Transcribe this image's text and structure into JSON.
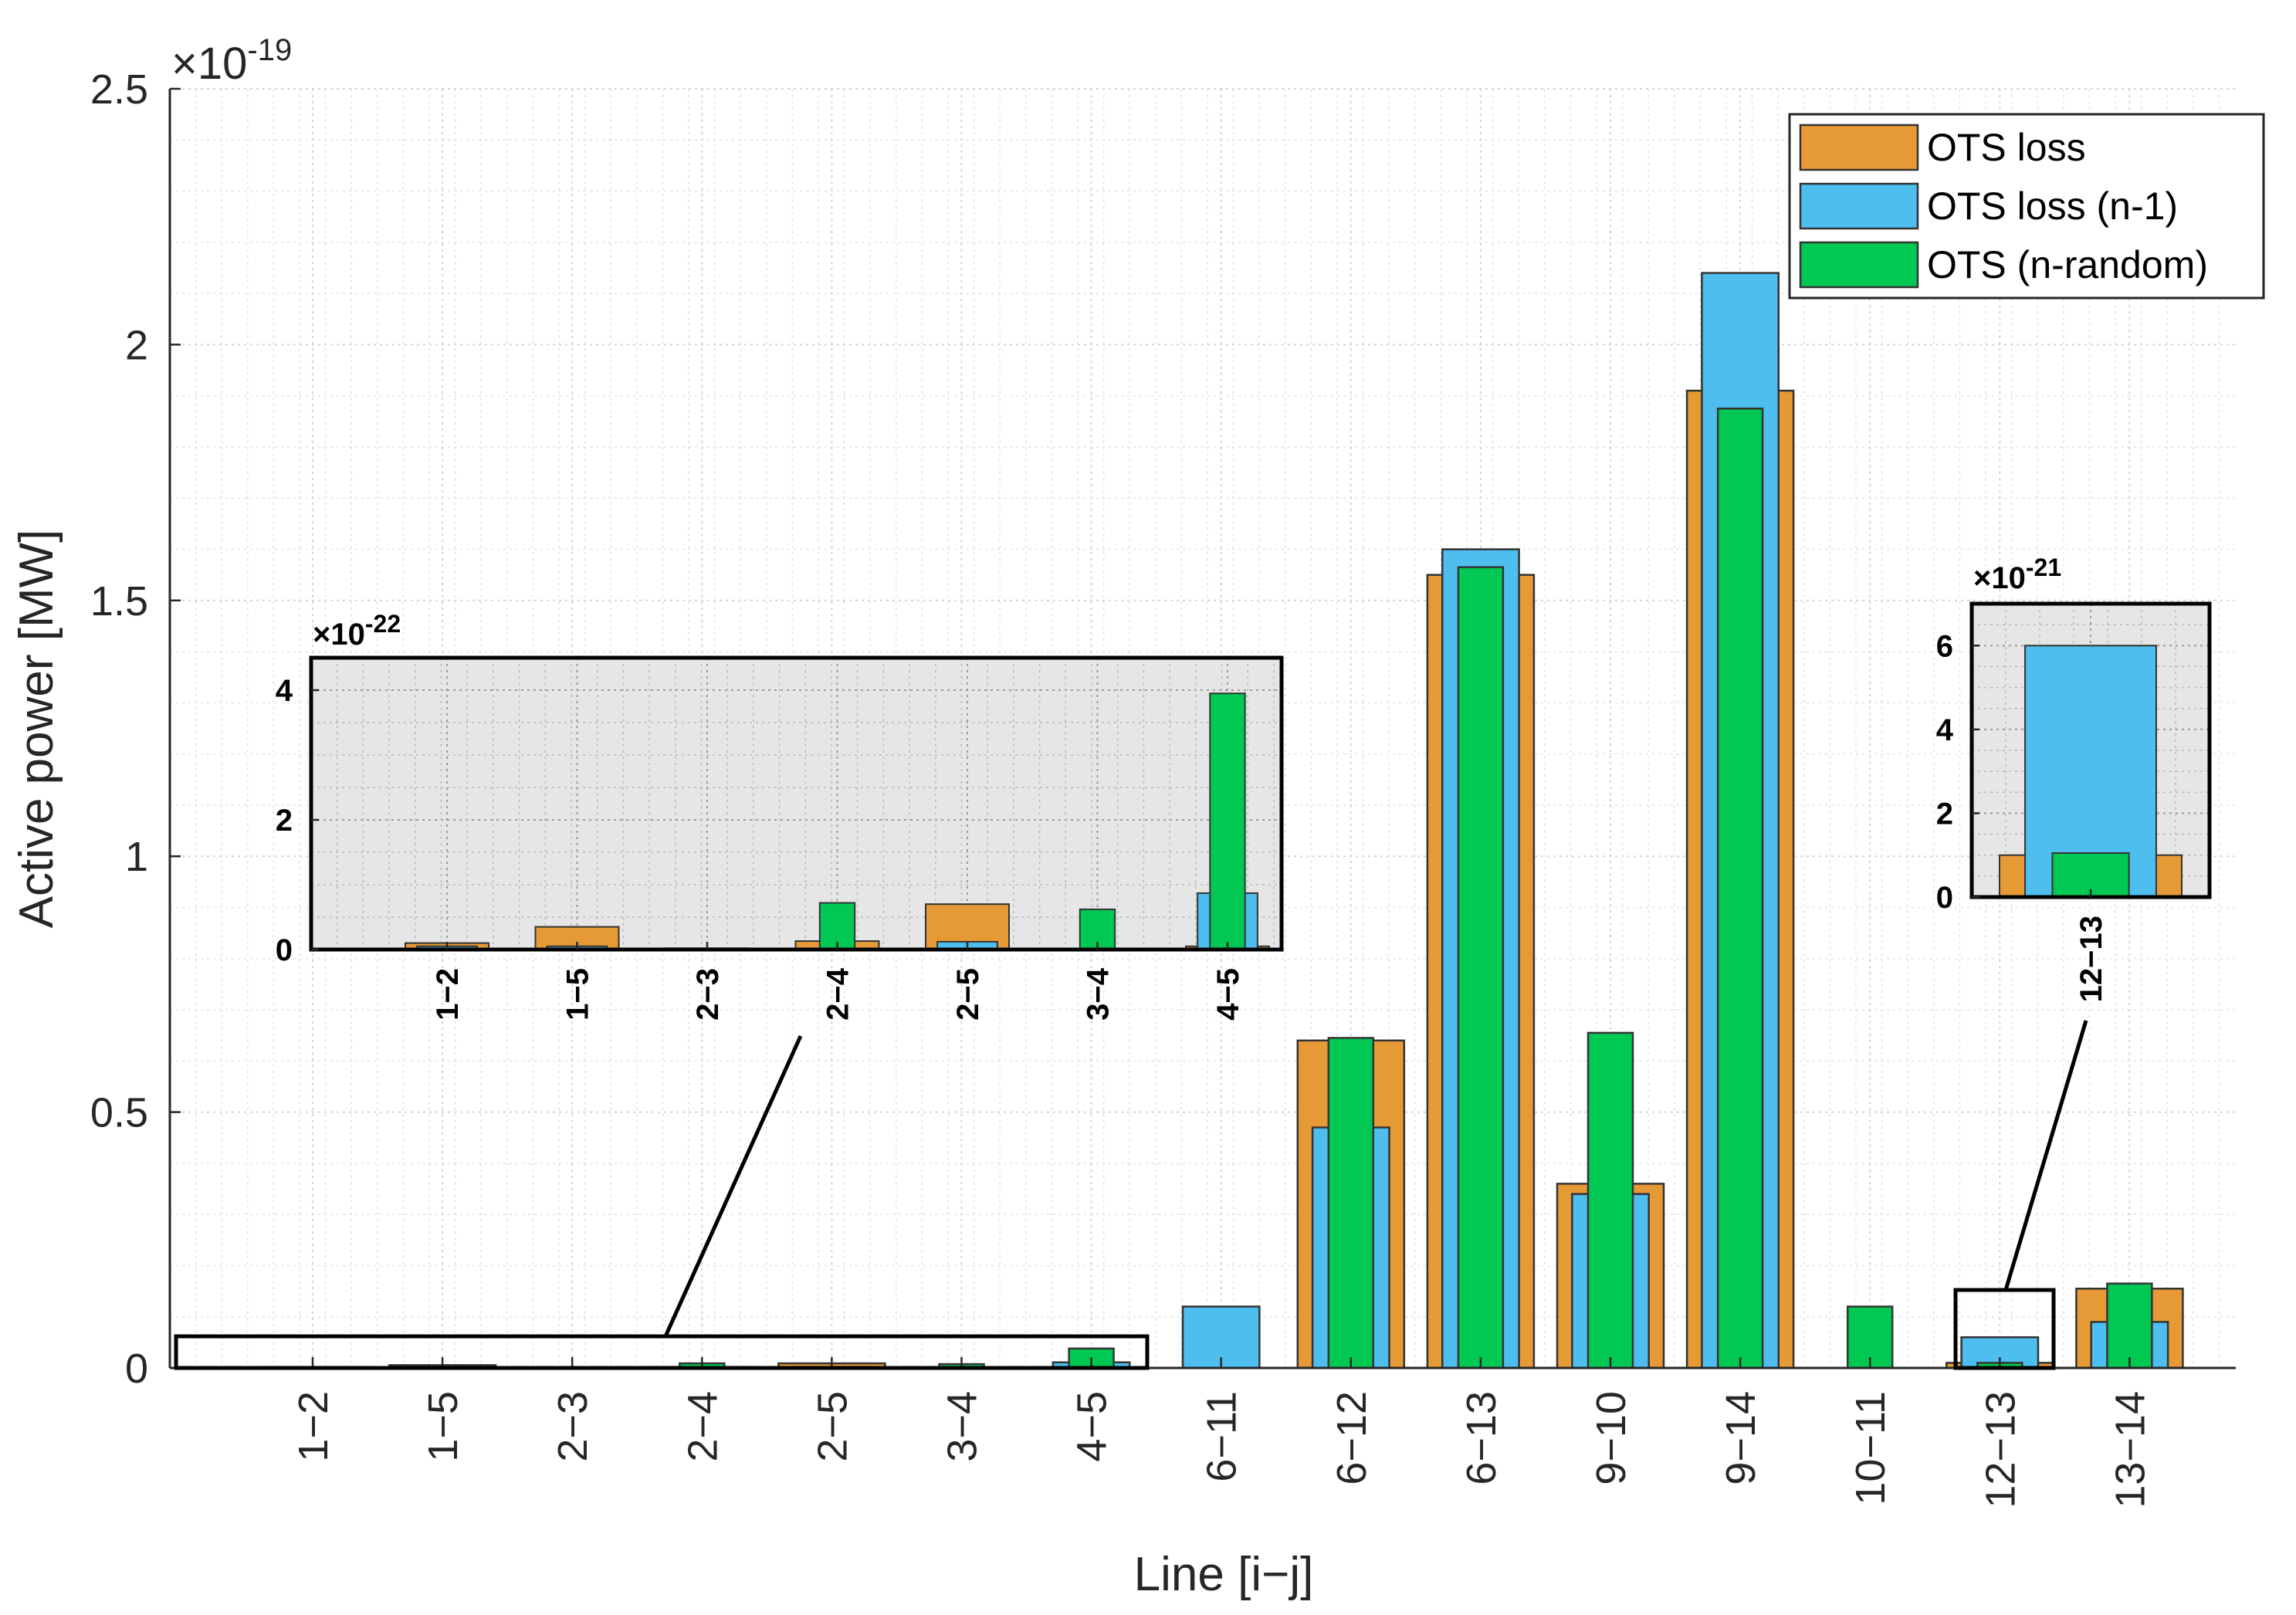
{
  "chart_data": [
    {
      "type": "bar",
      "title": "",
      "xlabel": "Line [i−j]",
      "ylabel": "Active power [MW]",
      "y_exponent_label": "×10",
      "y_exponent": "-19",
      "ylim": [
        0,
        2.5
      ],
      "yticks": [
        "0",
        "0.5",
        "1",
        "1.5",
        "2",
        "2.5"
      ],
      "ytick_values": [
        0,
        0.5,
        1,
        1.5,
        2,
        2.5
      ],
      "grid": "major and minor dotted",
      "legend_placement": "top-right",
      "categories": [
        "1−2",
        "1−5",
        "2−3",
        "2−4",
        "2−5",
        "3−4",
        "4−5",
        "6−11",
        "6−12",
        "6−13",
        "9−10",
        "9−14",
        "10−11",
        "12−13",
        "13−14"
      ],
      "series": [
        {
          "name": "OTS loss",
          "color": "#E69A35",
          "values": [
            0.002,
            0.0055,
            0.001,
            0.002,
            0.009,
            0.001,
            0.001,
            0.0,
            0.64,
            1.55,
            0.36,
            1.91,
            0.0,
            0.01,
            0.155
          ]
        },
        {
          "name": "OTS loss (n-1)",
          "color": "#4DBEEE",
          "values": [
            0.001,
            0.001,
            0.0005,
            0.0005,
            0.002,
            0.0005,
            0.011,
            0.12,
            0.47,
            1.6,
            0.34,
            2.14,
            0.0,
            0.06,
            0.09
          ]
        },
        {
          "name": "OTS (n-random)",
          "color": "#00C853",
          "values": [
            0.0005,
            0.0005,
            0.0005,
            0.009,
            0.0005,
            0.0075,
            0.038,
            0.0,
            0.645,
            1.565,
            0.655,
            1.875,
            0.12,
            0.01,
            0.165
          ]
        }
      ]
    },
    {
      "type": "bar",
      "role": "inset zoom of lines 1−2 to 4−5",
      "y_exponent_label": "×10",
      "y_exponent": "-22",
      "ylim": [
        0,
        4.5
      ],
      "yticks": [
        "0",
        "2",
        "4"
      ],
      "ytick_values": [
        0,
        2,
        4
      ],
      "categories": [
        "1−2",
        "1−5",
        "2−3",
        "2−4",
        "2−5",
        "3−4",
        "4−5"
      ],
      "series": [
        {
          "name": "OTS loss",
          "values": [
            0.1,
            0.35,
            0.02,
            0.13,
            0.7,
            0.0,
            0.05
          ]
        },
        {
          "name": "OTS loss (n-1)",
          "values": [
            0.05,
            0.05,
            0.0,
            0.0,
            0.12,
            0.0,
            0.87
          ]
        },
        {
          "name": "OTS (n-random)",
          "values": [
            0.0,
            0.0,
            0.0,
            0.72,
            0.0,
            0.62,
            3.95
          ]
        }
      ]
    },
    {
      "type": "bar",
      "role": "inset zoom of line 12−13",
      "y_exponent_label": "×10",
      "y_exponent": "-21",
      "ylim": [
        0,
        7
      ],
      "yticks": [
        "0",
        "2",
        "4",
        "6"
      ],
      "ytick_values": [
        0,
        2,
        4,
        6
      ],
      "categories": [
        "12−13"
      ],
      "series": [
        {
          "name": "OTS loss",
          "values": [
            1.0
          ]
        },
        {
          "name": "OTS loss (n-1)",
          "values": [
            6.0
          ]
        },
        {
          "name": "OTS (n-random)",
          "values": [
            1.05
          ]
        }
      ]
    }
  ]
}
